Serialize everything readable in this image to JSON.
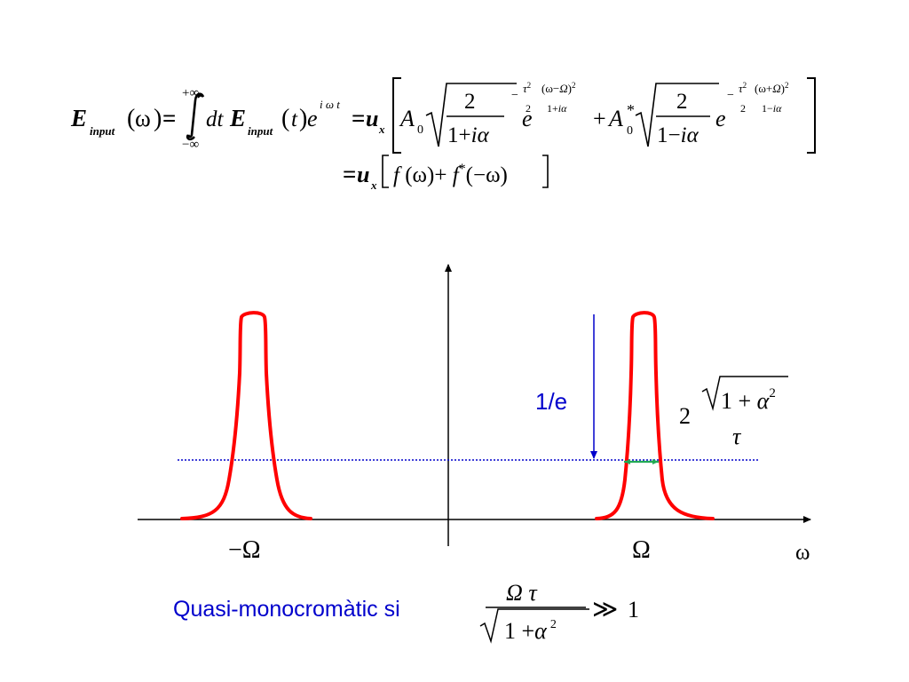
{
  "equation": {
    "E": "E",
    "input": "input",
    "omega": "ω",
    "t": "t",
    "dt": "dt",
    "plus_inf": "+∞",
    "minus_inf": "−∞",
    "e": "e",
    "exp_iwt": "i ω t",
    "u": "u",
    "x": "x",
    "A": "A",
    "zero": "0",
    "star": "*",
    "two": "2",
    "one": "1",
    "i": "i",
    "alpha": "α",
    "tau": "τ",
    "Omega": "Ω",
    "f": "f",
    "minus": "−",
    "plus": "+",
    "eq": "="
  },
  "diagram": {
    "label_1e": "1/e",
    "width_prefix": "2",
    "one": "1",
    "plus": "+",
    "alpha": "α",
    "sq": "2",
    "tau": "τ",
    "minus_Omega": "−Ω",
    "Omega": "Ω",
    "omega": "ω"
  },
  "condition": {
    "text": "Quasi-monocromàtic si",
    "Omega": "Ω",
    "tau": "τ",
    "one": "1",
    "plus": "+",
    "alpha": "α",
    "sq": "2",
    "gg": "≫",
    "rhs": "1"
  },
  "colors": {
    "curve": "#ff0000",
    "arrow_1e": "#0000cc",
    "level_line": "#0000cc",
    "width_arrow": "#22aa55"
  }
}
